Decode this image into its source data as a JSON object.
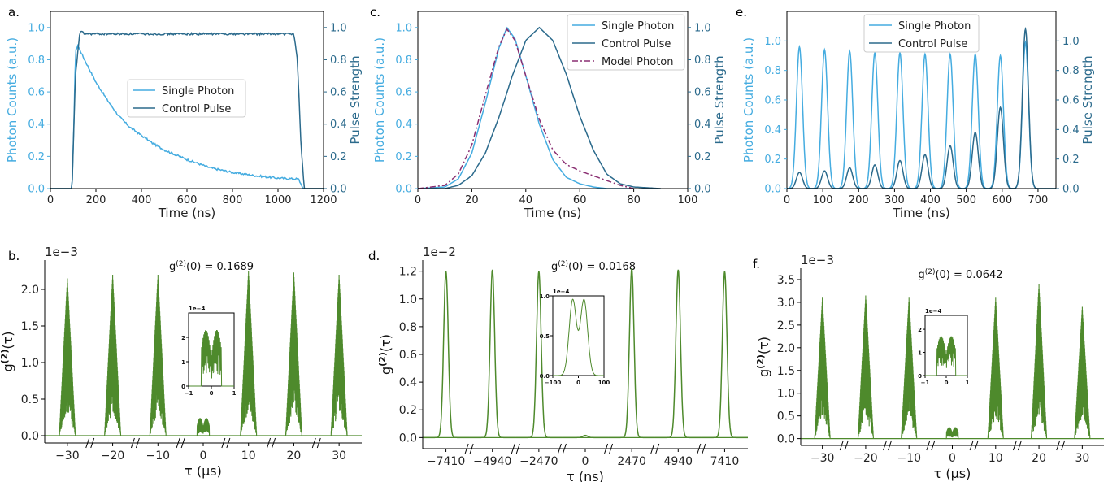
{
  "colors": {
    "single_photon": "#45ace0",
    "control_pulse": "#2b6a8c",
    "model_photon": "#8a2f72",
    "g2": "#4e8a2c",
    "left_axis": "#45ace0",
    "right_axis": "#2b6a8c"
  },
  "chart_data": [
    {
      "panel": "a.",
      "type": "line",
      "xlabel": "Time (ns)",
      "ylabel": "Photon Counts (a.u.)",
      "y2label": "Pulse Strength",
      "xlim": [
        0,
        1200
      ],
      "ylim": [
        0,
        1.1
      ],
      "y2lim": [
        0,
        1.1
      ],
      "xticks": [
        0,
        200,
        400,
        600,
        800,
        1000,
        1200
      ],
      "yticks": [
        0.0,
        0.2,
        0.4,
        0.6,
        0.8,
        1.0
      ],
      "y2ticks": [
        0.0,
        0.2,
        0.4,
        0.6,
        0.8,
        1.0
      ],
      "legend": [
        "Single Photon",
        "Control Pulse"
      ],
      "legend_position": "center-right",
      "series": [
        {
          "name": "Single Photon",
          "axis": "left",
          "x": [
            0,
            95,
            105,
            110,
            120,
            150,
            200,
            250,
            300,
            350,
            400,
            450,
            500,
            600,
            700,
            800,
            900,
            1000,
            1080,
            1090,
            1110,
            1200
          ],
          "y": [
            0,
            0,
            0.5,
            0.85,
            0.89,
            0.8,
            0.66,
            0.55,
            0.45,
            0.38,
            0.33,
            0.28,
            0.24,
            0.18,
            0.13,
            0.1,
            0.08,
            0.065,
            0.06,
            0.06,
            0,
            0
          ]
        },
        {
          "name": "Control Pulse",
          "axis": "right",
          "x": [
            0,
            95,
            110,
            130,
            150,
            300,
            600,
            900,
            1070,
            1085,
            1100,
            1115,
            1200
          ],
          "y": [
            0,
            0,
            0.7,
            0.98,
            0.96,
            0.96,
            0.96,
            0.96,
            0.96,
            0.8,
            0.3,
            0,
            0
          ]
        }
      ]
    },
    {
      "panel": "c.",
      "type": "line",
      "xlabel": "Time (ns)",
      "ylabel": "Photon Counts (a.u.)",
      "y2label": "Pulse Strength",
      "xlim": [
        0,
        100
      ],
      "ylim": [
        0,
        1.1
      ],
      "y2lim": [
        0,
        1.1
      ],
      "xticks": [
        0,
        20,
        40,
        60,
        80,
        100
      ],
      "yticks": [
        0.0,
        0.2,
        0.4,
        0.6,
        0.8,
        1.0
      ],
      "y2ticks": [
        0.0,
        0.2,
        0.4,
        0.6,
        0.8,
        1.0
      ],
      "legend": [
        "Single Photon",
        "Control Pulse",
        "Model Photon"
      ],
      "legend_position": "top-right",
      "series": [
        {
          "name": "Single Photon",
          "axis": "left",
          "x": [
            0,
            10,
            15,
            20,
            25,
            30,
            33,
            36,
            40,
            45,
            50,
            55,
            60,
            65,
            70,
            75,
            80
          ],
          "y": [
            0,
            0.01,
            0.06,
            0.22,
            0.53,
            0.87,
            1.0,
            0.93,
            0.7,
            0.4,
            0.18,
            0.07,
            0.03,
            0.01,
            0,
            0,
            0
          ]
        },
        {
          "name": "Control Pulse",
          "axis": "right",
          "x": [
            0,
            10,
            15,
            20,
            25,
            30,
            35,
            40,
            45,
            50,
            55,
            60,
            65,
            70,
            75,
            80,
            90
          ],
          "y": [
            0,
            0,
            0.02,
            0.08,
            0.22,
            0.44,
            0.7,
            0.92,
            1.0,
            0.92,
            0.71,
            0.45,
            0.24,
            0.09,
            0.03,
            0.01,
            0
          ]
        },
        {
          "name": "Model Photon",
          "axis": "left",
          "style": "dash-dot",
          "x": [
            0,
            10,
            15,
            20,
            25,
            30,
            33,
            36,
            40,
            45,
            50,
            55,
            60,
            65,
            70,
            75,
            80
          ],
          "y": [
            0,
            0.02,
            0.09,
            0.27,
            0.58,
            0.88,
            0.99,
            0.92,
            0.7,
            0.43,
            0.24,
            0.15,
            0.11,
            0.08,
            0.05,
            0.02,
            0
          ]
        }
      ]
    },
    {
      "panel": "e.",
      "type": "line",
      "xlabel": "Time (ns)",
      "ylabel": "Photon Counts (a.u.)",
      "y2label": "Pulse Strength",
      "xlim": [
        0,
        750
      ],
      "ylim": [
        0,
        1.2
      ],
      "y2lim": [
        0,
        1.2
      ],
      "xticks": [
        0,
        100,
        200,
        300,
        400,
        500,
        600,
        700
      ],
      "yticks": [
        0.0,
        0.2,
        0.4,
        0.6,
        0.8,
        1.0
      ],
      "y2ticks": [
        0.0,
        0.2,
        0.4,
        0.6,
        0.8,
        1.0
      ],
      "legend": [
        "Single Photon",
        "Control Pulse"
      ],
      "legend_position": "top-center",
      "series": [
        {
          "name": "Single Photon",
          "axis": "left",
          "kind": "pulse-train",
          "centers": [
            35,
            105,
            175,
            245,
            315,
            385,
            455,
            525,
            595,
            665
          ],
          "peaks": [
            0.96,
            0.94,
            0.93,
            0.92,
            0.92,
            0.91,
            0.91,
            0.91,
            0.9,
            0.99
          ],
          "width": 12
        },
        {
          "name": "Control Pulse",
          "axis": "right",
          "kind": "pulse-train",
          "centers": [
            35,
            105,
            175,
            245,
            315,
            385,
            455,
            525,
            595,
            665
          ],
          "peaks": [
            0.11,
            0.12,
            0.14,
            0.16,
            0.19,
            0.23,
            0.29,
            0.38,
            0.55,
            1.08
          ],
          "width": 12
        }
      ]
    },
    {
      "panel": "b.",
      "type": "line",
      "scale_label": "1e−3",
      "annotation": "g(2)(0) = 0.1689",
      "xlabel": "τ (μs)",
      "ylabel": "g(2)(τ)",
      "ylim": [
        -0.1,
        2.4
      ],
      "yticks": [
        "0.0",
        "0.5",
        "1.0",
        "1.5",
        "2.0"
      ],
      "yticks_values": [
        0.0,
        0.5,
        1.0,
        1.5,
        2.0
      ],
      "xtick_labels": [
        "−30",
        "−20",
        "−10",
        "0",
        "10",
        "20",
        "30"
      ],
      "peak_values": [
        2.15,
        2.2,
        2.2,
        0.24,
        2.25,
        2.23,
        2.2
      ],
      "center_peak": "double",
      "inset": {
        "scale_label": "1e−4",
        "xticks": [
          "−1",
          "0",
          "1"
        ],
        "yticks": [
          "0",
          "1",
          "2"
        ],
        "ylim": [
          0,
          3
        ],
        "double_peak": 2.3
      }
    },
    {
      "panel": "d.",
      "type": "line",
      "scale_label": "1e−2",
      "annotation": "g(2)(0) = 0.0168",
      "xlabel": "τ (ns)",
      "ylabel": "g(2)(τ)",
      "ylim": [
        -0.08,
        1.28
      ],
      "yticks": [
        "0.0",
        "0.2",
        "0.4",
        "0.6",
        "0.8",
        "1.0",
        "1.2"
      ],
      "yticks_values": [
        0.0,
        0.2,
        0.4,
        0.6,
        0.8,
        1.0,
        1.2
      ],
      "xtick_labels": [
        "−7410",
        "−4940",
        "−2470",
        "0",
        "2470",
        "4940",
        "7410"
      ],
      "peak_values": [
        1.2,
        1.21,
        1.2,
        0.016,
        1.22,
        1.21,
        1.2
      ],
      "center_peak": "small",
      "inset": {
        "scale_label": "1e−4",
        "xticks": [
          "−100",
          "0",
          "100"
        ],
        "yticks": [
          "0.0",
          "0.5",
          "1.0"
        ],
        "ylim": [
          0,
          1.0
        ],
        "double_peak": 0.95
      }
    },
    {
      "panel": "f.",
      "type": "line",
      "scale_label": "1e−3",
      "annotation": "g(2)(0) = 0.0642",
      "xlabel": "τ (μs)",
      "ylabel": "g(2)(τ)",
      "ylim": [
        -0.15,
        3.75
      ],
      "yticks": [
        "0.0",
        "0.5",
        "1.0",
        "1.5",
        "2.0",
        "2.5",
        "3.0",
        "3.5"
      ],
      "yticks_values": [
        0.0,
        0.5,
        1.0,
        1.5,
        2.0,
        2.5,
        3.0,
        3.5
      ],
      "xtick_labels": [
        "−30",
        "−20",
        "−10",
        "0",
        "10",
        "20",
        "30"
      ],
      "peak_values": [
        3.1,
        3.15,
        3.1,
        0.25,
        3.1,
        3.4,
        2.9
      ],
      "center_peak": "double",
      "inset": {
        "scale_label": "1e−4",
        "xticks": [
          "−1",
          "0",
          "1"
        ],
        "yticks": [
          "0",
          "1",
          "2"
        ],
        "ylim": [
          0,
          2.6
        ],
        "double_peak": 1.7
      }
    }
  ]
}
